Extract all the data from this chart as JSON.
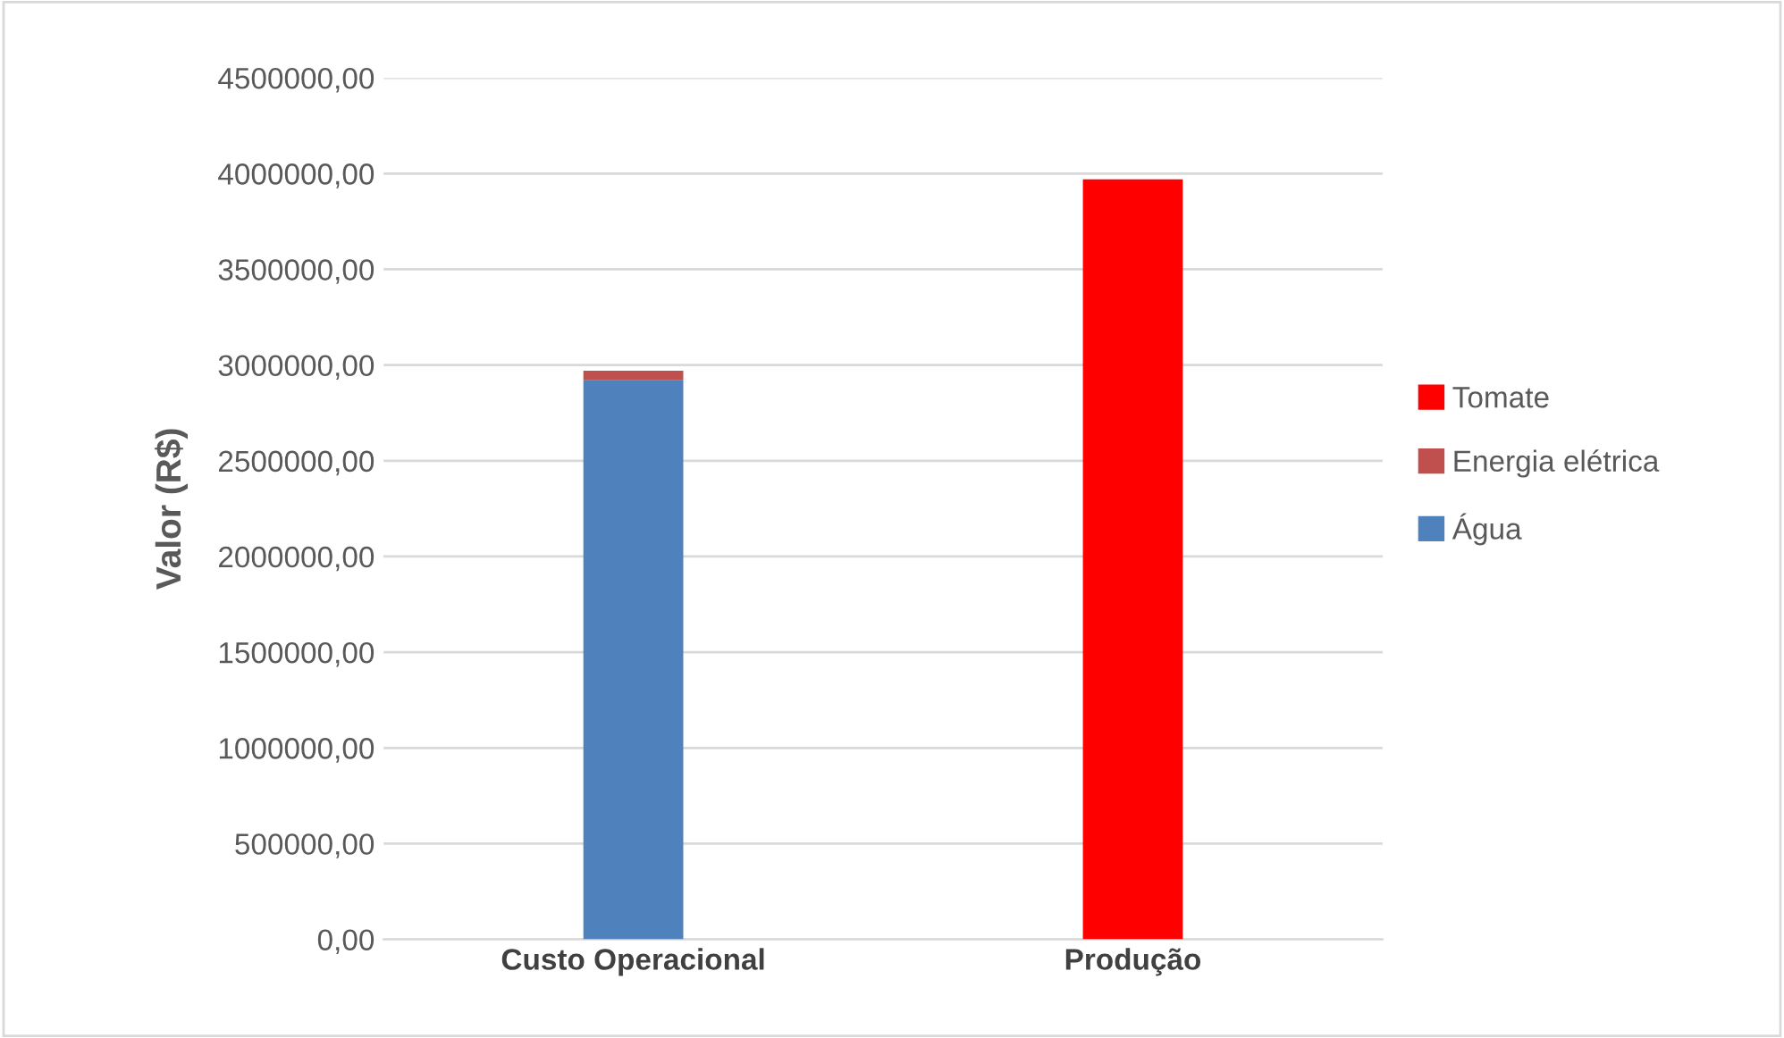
{
  "chart_data": {
    "type": "bar",
    "stacked": true,
    "ylabel": "Valor (R$)",
    "categories": [
      "Custo Operacional",
      "Produção"
    ],
    "series": [
      {
        "name": "Água",
        "color": "#4f81bd",
        "values": [
          2920000,
          null
        ]
      },
      {
        "name": "Energia elétrica",
        "color": "#c0504d",
        "values": [
          50000,
          null
        ]
      },
      {
        "name": "Tomate",
        "color": "#ff0000",
        "values": [
          null,
          3970000
        ]
      }
    ],
    "ylim": [
      0,
      4500000
    ],
    "yticks": [
      {
        "value": 0,
        "label": "0,00"
      },
      {
        "value": 500000,
        "label": "500000,00"
      },
      {
        "value": 1000000,
        "label": "1000000,00"
      },
      {
        "value": 1500000,
        "label": "1500000,00"
      },
      {
        "value": 2000000,
        "label": "2000000,00"
      },
      {
        "value": 2500000,
        "label": "2500000,00"
      },
      {
        "value": 3000000,
        "label": "3000000,00"
      },
      {
        "value": 3500000,
        "label": "3500000,00"
      },
      {
        "value": 4000000,
        "label": "4000000,00"
      },
      {
        "value": 4500000,
        "label": "4500000,00"
      }
    ],
    "grid": "y",
    "legend": "right"
  }
}
